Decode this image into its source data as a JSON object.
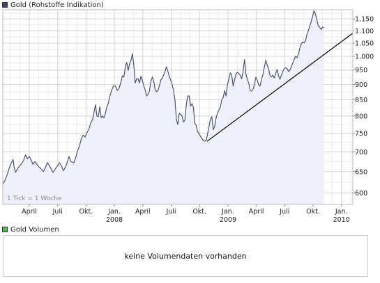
{
  "legend_price": {
    "label": "Gold (Rohstoffe Indikation)",
    "color": "#3d4a63"
  },
  "legend_volume": {
    "label": "Gold Volumen",
    "color": "#57b85a"
  },
  "volume_panel": {
    "message": "keine Volumendaten vorhanden"
  },
  "chart_data": {
    "type": "area",
    "title": "",
    "xlabel": "",
    "ylabel": "",
    "annotation": "1 Tick = 1 Woche",
    "ylim": [
      575,
      1190
    ],
    "y_scale": "log",
    "yticks": [
      600,
      650,
      700,
      750,
      800,
      850,
      900,
      950,
      1000,
      1050,
      1100,
      1150
    ],
    "ytick_labels": [
      "600",
      "650",
      "700",
      "750",
      "800",
      "850",
      "900",
      "950",
      "1.000",
      "1.050",
      "1.100",
      "1.150"
    ],
    "x_ticks": [
      {
        "label": "April",
        "t": 0.3
      },
      {
        "label": "Juli",
        "t": 3.3
      },
      {
        "label": "Okt.",
        "t": 6.3
      },
      {
        "label": "Jan.",
        "t": 9.3,
        "year": "2008"
      },
      {
        "label": "April",
        "t": 12.3
      },
      {
        "label": "Juli",
        "t": 15.3
      },
      {
        "label": "Okt.",
        "t": 18.3
      },
      {
        "label": "Jan.",
        "t": 21.3,
        "year": "2009"
      },
      {
        "label": "April",
        "t": 24.3
      },
      {
        "label": "Juli",
        "t": 27.3
      },
      {
        "label": "Okt.",
        "t": 30.3
      },
      {
        "label": "Jan.",
        "t": 33.3,
        "year": "2010"
      }
    ],
    "x_range": [
      -2.5,
      34.5
    ],
    "grid": true,
    "line_color": "#3d4a63",
    "fill_color": "#eef0fa",
    "trendline": {
      "color": "#000000",
      "from": {
        "t": 19.1,
        "y": 728
      },
      "to": {
        "t": 34.5,
        "y": 1090
      }
    },
    "series": [
      {
        "values": [
          [
            -2.5,
            620
          ],
          [
            -2.3,
            628
          ],
          [
            -2.0,
            645
          ],
          [
            -1.8,
            660
          ],
          [
            -1.6,
            672
          ],
          [
            -1.4,
            680
          ],
          [
            -1.3,
            660
          ],
          [
            -1.15,
            648
          ],
          [
            -1.0,
            655
          ],
          [
            -0.8,
            662
          ],
          [
            -0.5,
            670
          ],
          [
            -0.3,
            678
          ],
          [
            -0.1,
            692
          ],
          [
            0.1,
            682
          ],
          [
            0.3,
            688
          ],
          [
            0.5,
            678
          ],
          [
            0.7,
            668
          ],
          [
            0.9,
            675
          ],
          [
            1.1,
            668
          ],
          [
            1.3,
            662
          ],
          [
            1.5,
            658
          ],
          [
            1.8,
            650
          ],
          [
            2.0,
            660
          ],
          [
            2.2,
            672
          ],
          [
            2.5,
            662
          ],
          [
            2.8,
            648
          ],
          [
            3.0,
            655
          ],
          [
            3.3,
            665
          ],
          [
            3.5,
            672
          ],
          [
            3.7,
            665
          ],
          [
            3.9,
            652
          ],
          [
            4.1,
            660
          ],
          [
            4.3,
            672
          ],
          [
            4.5,
            688
          ],
          [
            4.7,
            675
          ],
          [
            5.0,
            672
          ],
          [
            5.2,
            684
          ],
          [
            5.4,
            702
          ],
          [
            5.6,
            715
          ],
          [
            5.8,
            735
          ],
          [
            6.0,
            745
          ],
          [
            6.2,
            740
          ],
          [
            6.4,
            752
          ],
          [
            6.6,
            762
          ],
          [
            6.8,
            780
          ],
          [
            7.0,
            790
          ],
          [
            7.15,
            812
          ],
          [
            7.3,
            835
          ],
          [
            7.45,
            800
          ],
          [
            7.6,
            798
          ],
          [
            7.75,
            828
          ],
          [
            7.9,
            795
          ],
          [
            8.05,
            800
          ],
          [
            8.2,
            795
          ],
          [
            8.35,
            808
          ],
          [
            8.5,
            828
          ],
          [
            8.65,
            838
          ],
          [
            8.8,
            860
          ],
          [
            9.0,
            880
          ],
          [
            9.2,
            895
          ],
          [
            9.4,
            895
          ],
          [
            9.6,
            880
          ],
          [
            9.8,
            888
          ],
          [
            10.0,
            910
          ],
          [
            10.15,
            930
          ],
          [
            10.3,
            925
          ],
          [
            10.45,
            960
          ],
          [
            10.6,
            978
          ],
          [
            10.75,
            948
          ],
          [
            10.9,
            972
          ],
          [
            11.05,
            985
          ],
          [
            11.2,
            1010
          ],
          [
            11.35,
            968
          ],
          [
            11.5,
            905
          ],
          [
            11.65,
            920
          ],
          [
            11.8,
            920
          ],
          [
            11.95,
            905
          ],
          [
            12.1,
            928
          ],
          [
            12.25,
            915
          ],
          [
            12.4,
            895
          ],
          [
            12.55,
            882
          ],
          [
            12.7,
            862
          ],
          [
            12.85,
            868
          ],
          [
            13.0,
            878
          ],
          [
            13.15,
            910
          ],
          [
            13.3,
            925
          ],
          [
            13.45,
            912
          ],
          [
            13.6,
            885
          ],
          [
            13.75,
            876
          ],
          [
            13.9,
            880
          ],
          [
            14.05,
            895
          ],
          [
            14.2,
            915
          ],
          [
            14.35,
            922
          ],
          [
            14.5,
            932
          ],
          [
            14.65,
            945
          ],
          [
            14.8,
            962
          ],
          [
            14.95,
            945
          ],
          [
            15.1,
            928
          ],
          [
            15.25,
            915
          ],
          [
            15.4,
            900
          ],
          [
            15.55,
            880
          ],
          [
            15.7,
            850
          ],
          [
            15.85,
            790
          ],
          [
            16.0,
            775
          ],
          [
            16.15,
            808
          ],
          [
            16.3,
            805
          ],
          [
            16.45,
            800
          ],
          [
            16.6,
            782
          ],
          [
            16.75,
            788
          ],
          [
            16.9,
            835
          ],
          [
            17.05,
            862
          ],
          [
            17.2,
            862
          ],
          [
            17.35,
            830
          ],
          [
            17.5,
            838
          ],
          [
            17.65,
            826
          ],
          [
            17.8,
            778
          ],
          [
            17.95,
            772
          ],
          [
            18.1,
            755
          ],
          [
            18.25,
            748
          ],
          [
            18.4,
            742
          ],
          [
            18.55,
            735
          ],
          [
            18.7,
            730
          ],
          [
            18.85,
            728
          ],
          [
            19.0,
            730
          ],
          [
            19.15,
            748
          ],
          [
            19.3,
            770
          ],
          [
            19.45,
            790
          ],
          [
            19.6,
            798
          ],
          [
            19.75,
            760
          ],
          [
            19.9,
            770
          ],
          [
            20.05,
            795
          ],
          [
            20.2,
            810
          ],
          [
            20.35,
            818
          ],
          [
            20.5,
            828
          ],
          [
            20.65,
            850
          ],
          [
            20.8,
            858
          ],
          [
            20.95,
            880
          ],
          [
            21.1,
            862
          ],
          [
            21.25,
            900
          ],
          [
            21.4,
            920
          ],
          [
            21.55,
            940
          ],
          [
            21.7,
            932
          ],
          [
            21.85,
            895
          ],
          [
            22.0,
            915
          ],
          [
            22.15,
            935
          ],
          [
            22.3,
            942
          ],
          [
            22.45,
            938
          ],
          [
            22.6,
            932
          ],
          [
            22.75,
            920
          ],
          [
            22.9,
            945
          ],
          [
            23.05,
            988
          ],
          [
            23.2,
            935
          ],
          [
            23.35,
            918
          ],
          [
            23.5,
            905
          ],
          [
            23.65,
            880
          ],
          [
            23.8,
            878
          ],
          [
            23.95,
            885
          ],
          [
            24.1,
            900
          ],
          [
            24.25,
            925
          ],
          [
            24.4,
            915
          ],
          [
            24.55,
            898
          ],
          [
            24.7,
            895
          ],
          [
            24.85,
            918
          ],
          [
            25.0,
            935
          ],
          [
            25.15,
            960
          ],
          [
            25.3,
            985
          ],
          [
            25.45,
            968
          ],
          [
            25.6,
            955
          ],
          [
            25.75,
            930
          ],
          [
            25.9,
            926
          ],
          [
            26.05,
            932
          ],
          [
            26.2,
            922
          ],
          [
            26.35,
            938
          ],
          [
            26.5,
            952
          ],
          [
            26.65,
            930
          ],
          [
            26.8,
            918
          ],
          [
            26.95,
            932
          ],
          [
            27.1,
            945
          ],
          [
            27.25,
            955
          ],
          [
            27.4,
            958
          ],
          [
            27.55,
            955
          ],
          [
            27.7,
            945
          ],
          [
            27.85,
            950
          ],
          [
            28.0,
            962
          ],
          [
            28.15,
            975
          ],
          [
            28.3,
            988
          ],
          [
            28.45,
            1000
          ],
          [
            28.6,
            995
          ],
          [
            28.75,
            1008
          ],
          [
            28.9,
            1030
          ],
          [
            29.05,
            1048
          ],
          [
            29.2,
            1055
          ],
          [
            29.35,
            1052
          ],
          [
            29.5,
            1060
          ],
          [
            29.65,
            1085
          ],
          [
            29.8,
            1100
          ],
          [
            29.95,
            1120
          ],
          [
            30.1,
            1138
          ],
          [
            30.25,
            1160
          ],
          [
            30.4,
            1185
          ],
          [
            30.55,
            1172
          ],
          [
            30.7,
            1145
          ],
          [
            30.85,
            1120
          ],
          [
            31.0,
            1115
          ],
          [
            31.15,
            1105
          ],
          [
            31.3,
            1115
          ],
          [
            31.45,
            1112
          ]
        ]
      }
    ]
  }
}
